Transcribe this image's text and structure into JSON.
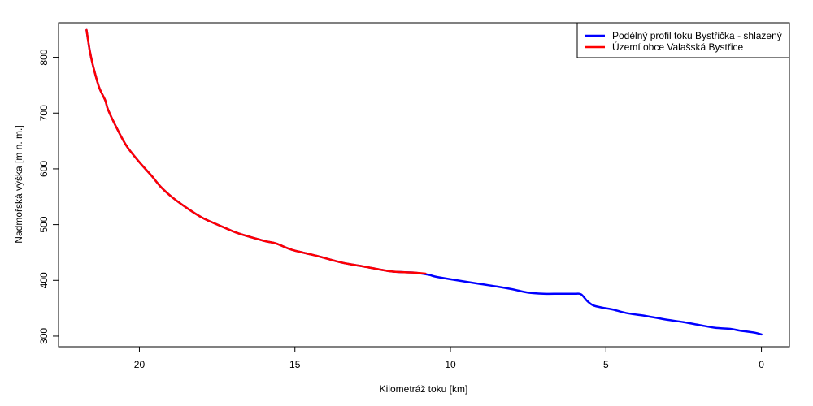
{
  "chart_data": {
    "type": "line",
    "xlabel": "Kilometráž toku [km]",
    "ylabel": "Nadmořská výška [m n. m.]",
    "x_reversed": true,
    "xlim": [
      22.6,
      -0.9
    ],
    "ylim": [
      281,
      862
    ],
    "x_ticks": [
      20,
      15,
      10,
      5,
      0
    ],
    "y_ticks": [
      300,
      400,
      500,
      600,
      700,
      800
    ],
    "legend_position": "top-right",
    "series": [
      {
        "name": "Podélný profil toku Bystřička - shlazený",
        "color": "#0000ff",
        "x": [
          21.7,
          21.6,
          21.5,
          21.3,
          21.1,
          21.0,
          20.7,
          20.4,
          20.0,
          19.6,
          19.3,
          18.9,
          18.4,
          18.0,
          17.7,
          17.2,
          16.8,
          16.0,
          15.6,
          15.1,
          14.3,
          13.5,
          12.8,
          11.9,
          11.2,
          10.7,
          10.5,
          10.0,
          9.1,
          8.5,
          8.0,
          7.5,
          7.0,
          6.5,
          6.0,
          5.8,
          5.6,
          5.4,
          5.1,
          4.8,
          4.3,
          3.7,
          3.1,
          2.5,
          2.0,
          1.5,
          1.0,
          0.7,
          0.2,
          0.0
        ],
        "y": [
          849,
          813,
          787,
          747,
          723,
          705,
          670,
          640,
          612,
          587,
          567,
          547,
          527,
          513,
          505,
          493,
          484,
          471,
          466,
          455,
          444,
          432,
          425,
          416,
          414,
          410,
          407,
          402,
          394,
          389,
          384,
          378,
          376,
          376,
          376,
          375,
          363,
          355,
          351,
          348,
          341,
          336,
          330,
          325,
          320,
          315,
          313,
          310,
          306,
          303
        ]
      },
      {
        "name": "Území obce Valašská Bystřice",
        "color": "#ff0000",
        "x": [
          21.7,
          21.6,
          21.5,
          21.3,
          21.1,
          21.0,
          20.7,
          20.4,
          20.0,
          19.6,
          19.3,
          18.9,
          18.4,
          18.0,
          17.7,
          17.2,
          16.8,
          16.0,
          15.6,
          15.1,
          14.3,
          13.5,
          12.8,
          11.9,
          11.2,
          10.8
        ],
        "y": [
          849,
          813,
          787,
          747,
          723,
          705,
          670,
          640,
          612,
          587,
          567,
          547,
          527,
          513,
          505,
          493,
          484,
          471,
          466,
          455,
          444,
          432,
          425,
          416,
          414,
          412
        ]
      }
    ]
  }
}
